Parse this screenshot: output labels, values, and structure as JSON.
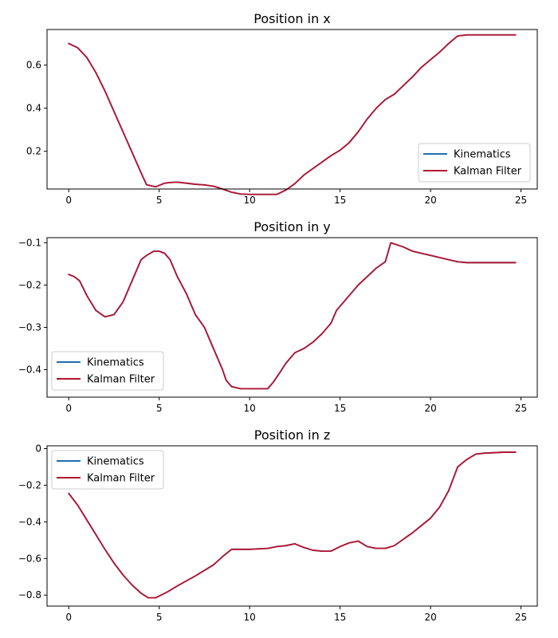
{
  "colors": {
    "kinematics": "#1f6fb0",
    "kalman": "#b5122e"
  },
  "chart_data": [
    {
      "type": "line",
      "title": "Position in x",
      "xlim": [
        -1.2,
        25.9
      ],
      "ylim": [
        0.025,
        0.765
      ],
      "xticks": [
        0,
        5,
        10,
        15,
        20,
        25
      ],
      "yticks": [
        0.2,
        0.4,
        0.6
      ],
      "legend": "bottom-right",
      "series": [
        {
          "name": "Kinematics",
          "color": "#1f6fb0",
          "x": [
            0,
            0.5,
            1,
            1.5,
            2,
            2.5,
            3,
            3.5,
            4,
            4.3,
            4.8,
            5.3,
            5.6,
            6,
            6.5,
            7,
            7.5,
            8,
            8.5,
            9,
            9.5,
            10,
            10.5,
            11,
            11.5,
            12,
            12.5,
            13,
            13.5,
            14,
            14.5,
            15,
            15.5,
            16,
            16.5,
            17,
            17.5,
            18,
            18.5,
            19,
            19.5,
            20,
            20.5,
            21,
            21.5,
            22,
            23,
            24.7
          ],
          "y": [
            0.7,
            0.68,
            0.635,
            0.565,
            0.48,
            0.385,
            0.29,
            0.195,
            0.1,
            0.045,
            0.035,
            0.052,
            0.055,
            0.057,
            0.052,
            0.047,
            0.044,
            0.038,
            0.025,
            0.01,
            0.002,
            0.0,
            0.0,
            0.0,
            0.0,
            0.02,
            0.05,
            0.09,
            0.12,
            0.15,
            0.18,
            0.205,
            0.24,
            0.29,
            0.35,
            0.4,
            0.44,
            0.465,
            0.505,
            0.545,
            0.59,
            0.625,
            0.66,
            0.7,
            0.735,
            0.74,
            0.74,
            0.74
          ]
        },
        {
          "name": "Kalman Filter",
          "color": "#b5122e",
          "x": [
            0,
            0.5,
            1,
            1.5,
            2,
            2.5,
            3,
            3.5,
            4,
            4.3,
            4.8,
            5.3,
            5.6,
            6,
            6.5,
            7,
            7.5,
            8,
            8.5,
            9,
            9.5,
            10,
            10.5,
            11,
            11.5,
            12,
            12.5,
            13,
            13.5,
            14,
            14.5,
            15,
            15.5,
            16,
            16.5,
            17,
            17.5,
            18,
            18.5,
            19,
            19.5,
            20,
            20.5,
            21,
            21.5,
            22,
            23,
            24.7
          ],
          "y": [
            0.7,
            0.68,
            0.635,
            0.565,
            0.48,
            0.385,
            0.29,
            0.195,
            0.1,
            0.045,
            0.035,
            0.052,
            0.055,
            0.057,
            0.052,
            0.047,
            0.044,
            0.038,
            0.025,
            0.01,
            0.002,
            0.0,
            0.0,
            0.0,
            0.0,
            0.02,
            0.05,
            0.09,
            0.12,
            0.15,
            0.18,
            0.205,
            0.24,
            0.29,
            0.35,
            0.4,
            0.44,
            0.465,
            0.505,
            0.545,
            0.59,
            0.625,
            0.66,
            0.7,
            0.735,
            0.74,
            0.74,
            0.74
          ]
        }
      ]
    },
    {
      "type": "line",
      "title": "Position in y",
      "xlim": [
        -1.2,
        25.9
      ],
      "ylim": [
        -0.465,
        -0.088
      ],
      "xticks": [
        0,
        5,
        10,
        15,
        20,
        25
      ],
      "yticks": [
        -0.4,
        -0.3,
        -0.2,
        -0.1
      ],
      "legend": "bottom-left",
      "series": [
        {
          "name": "Kinematics",
          "color": "#1f6fb0",
          "x": [
            0,
            0.3,
            0.6,
            1,
            1.5,
            2,
            2.5,
            3,
            3.5,
            4,
            4.3,
            4.7,
            5,
            5.3,
            5.6,
            6,
            6.5,
            7,
            7.5,
            8,
            8.5,
            8.7,
            9,
            9.5,
            10,
            10.5,
            11,
            11.3,
            11.7,
            12,
            12.5,
            13,
            13.5,
            14,
            14.5,
            14.8,
            15,
            15.5,
            16,
            16.5,
            17,
            17.5,
            17.8,
            18.5,
            19,
            20,
            21,
            21.5,
            22,
            23,
            24.7
          ],
          "y": [
            -0.175,
            -0.18,
            -0.19,
            -0.225,
            -0.26,
            -0.275,
            -0.27,
            -0.24,
            -0.19,
            -0.14,
            -0.13,
            -0.12,
            -0.12,
            -0.125,
            -0.14,
            -0.18,
            -0.22,
            -0.27,
            -0.3,
            -0.35,
            -0.4,
            -0.425,
            -0.44,
            -0.445,
            -0.445,
            -0.445,
            -0.445,
            -0.43,
            -0.405,
            -0.385,
            -0.36,
            -0.35,
            -0.335,
            -0.315,
            -0.29,
            -0.26,
            -0.25,
            -0.225,
            -0.2,
            -0.18,
            -0.16,
            -0.145,
            -0.1,
            -0.11,
            -0.12,
            -0.13,
            -0.14,
            -0.145,
            -0.147,
            -0.147,
            -0.147
          ]
        },
        {
          "name": "Kalman Filter",
          "color": "#b5122e",
          "x": [
            0,
            0.3,
            0.6,
            1,
            1.5,
            2,
            2.5,
            3,
            3.5,
            4,
            4.3,
            4.7,
            5,
            5.3,
            5.6,
            6,
            6.5,
            7,
            7.5,
            8,
            8.5,
            8.7,
            9,
            9.5,
            10,
            10.5,
            11,
            11.3,
            11.7,
            12,
            12.5,
            13,
            13.5,
            14,
            14.5,
            14.8,
            15,
            15.5,
            16,
            16.5,
            17,
            17.5,
            17.8,
            18.5,
            19,
            20,
            21,
            21.5,
            22,
            23,
            24.7
          ],
          "y": [
            -0.175,
            -0.18,
            -0.19,
            -0.225,
            -0.26,
            -0.275,
            -0.27,
            -0.24,
            -0.19,
            -0.14,
            -0.13,
            -0.12,
            -0.12,
            -0.125,
            -0.14,
            -0.18,
            -0.22,
            -0.27,
            -0.3,
            -0.35,
            -0.4,
            -0.425,
            -0.44,
            -0.445,
            -0.445,
            -0.445,
            -0.445,
            -0.43,
            -0.405,
            -0.385,
            -0.36,
            -0.35,
            -0.335,
            -0.315,
            -0.29,
            -0.26,
            -0.25,
            -0.225,
            -0.2,
            -0.18,
            -0.16,
            -0.145,
            -0.1,
            -0.11,
            -0.12,
            -0.13,
            -0.14,
            -0.145,
            -0.147,
            -0.147,
            -0.147
          ]
        }
      ]
    },
    {
      "type": "line",
      "title": "Position in z",
      "xlim": [
        -1.2,
        25.9
      ],
      "ylim": [
        -0.86,
        0.015
      ],
      "xticks": [
        0,
        5,
        10,
        15,
        20,
        25
      ],
      "yticks": [
        -0.8,
        -0.6,
        -0.4,
        -0.2,
        0.0
      ],
      "legend": "top-left",
      "series": [
        {
          "name": "Kinematics",
          "color": "#1f6fb0",
          "x": [
            0,
            0.5,
            1,
            1.5,
            2,
            2.5,
            3,
            3.5,
            4,
            4.4,
            4.8,
            5.5,
            6,
            7,
            8,
            8.5,
            9,
            10,
            11,
            11.5,
            12,
            12.5,
            13,
            13.5,
            14,
            14.5,
            15,
            15.5,
            16,
            16.5,
            17,
            17.5,
            18,
            19,
            20,
            20.5,
            21,
            21.5,
            22,
            22.5,
            23,
            24,
            24.7
          ],
          "y": [
            -0.245,
            -0.31,
            -0.39,
            -0.47,
            -0.55,
            -0.625,
            -0.69,
            -0.745,
            -0.79,
            -0.815,
            -0.815,
            -0.78,
            -0.75,
            -0.695,
            -0.635,
            -0.59,
            -0.55,
            -0.55,
            -0.545,
            -0.535,
            -0.53,
            -0.52,
            -0.54,
            -0.555,
            -0.56,
            -0.56,
            -0.535,
            -0.515,
            -0.505,
            -0.535,
            -0.545,
            -0.545,
            -0.53,
            -0.46,
            -0.38,
            -0.32,
            -0.23,
            -0.1,
            -0.06,
            -0.03,
            -0.025,
            -0.02,
            -0.02
          ]
        },
        {
          "name": "Kalman Filter",
          "color": "#b5122e",
          "x": [
            0,
            0.5,
            1,
            1.5,
            2,
            2.5,
            3,
            3.5,
            4,
            4.4,
            4.8,
            5.5,
            6,
            7,
            8,
            8.5,
            9,
            10,
            11,
            11.5,
            12,
            12.5,
            13,
            13.5,
            14,
            14.5,
            15,
            15.5,
            16,
            16.5,
            17,
            17.5,
            18,
            19,
            20,
            20.5,
            21,
            21.5,
            22,
            22.5,
            23,
            24,
            24.7
          ],
          "y": [
            -0.245,
            -0.31,
            -0.39,
            -0.47,
            -0.55,
            -0.625,
            -0.69,
            -0.745,
            -0.79,
            -0.815,
            -0.815,
            -0.78,
            -0.75,
            -0.695,
            -0.635,
            -0.59,
            -0.55,
            -0.55,
            -0.545,
            -0.535,
            -0.53,
            -0.52,
            -0.54,
            -0.555,
            -0.56,
            -0.56,
            -0.535,
            -0.515,
            -0.505,
            -0.535,
            -0.545,
            -0.545,
            -0.53,
            -0.46,
            -0.38,
            -0.32,
            -0.23,
            -0.1,
            -0.06,
            -0.03,
            -0.025,
            -0.02,
            -0.02
          ]
        }
      ]
    }
  ]
}
